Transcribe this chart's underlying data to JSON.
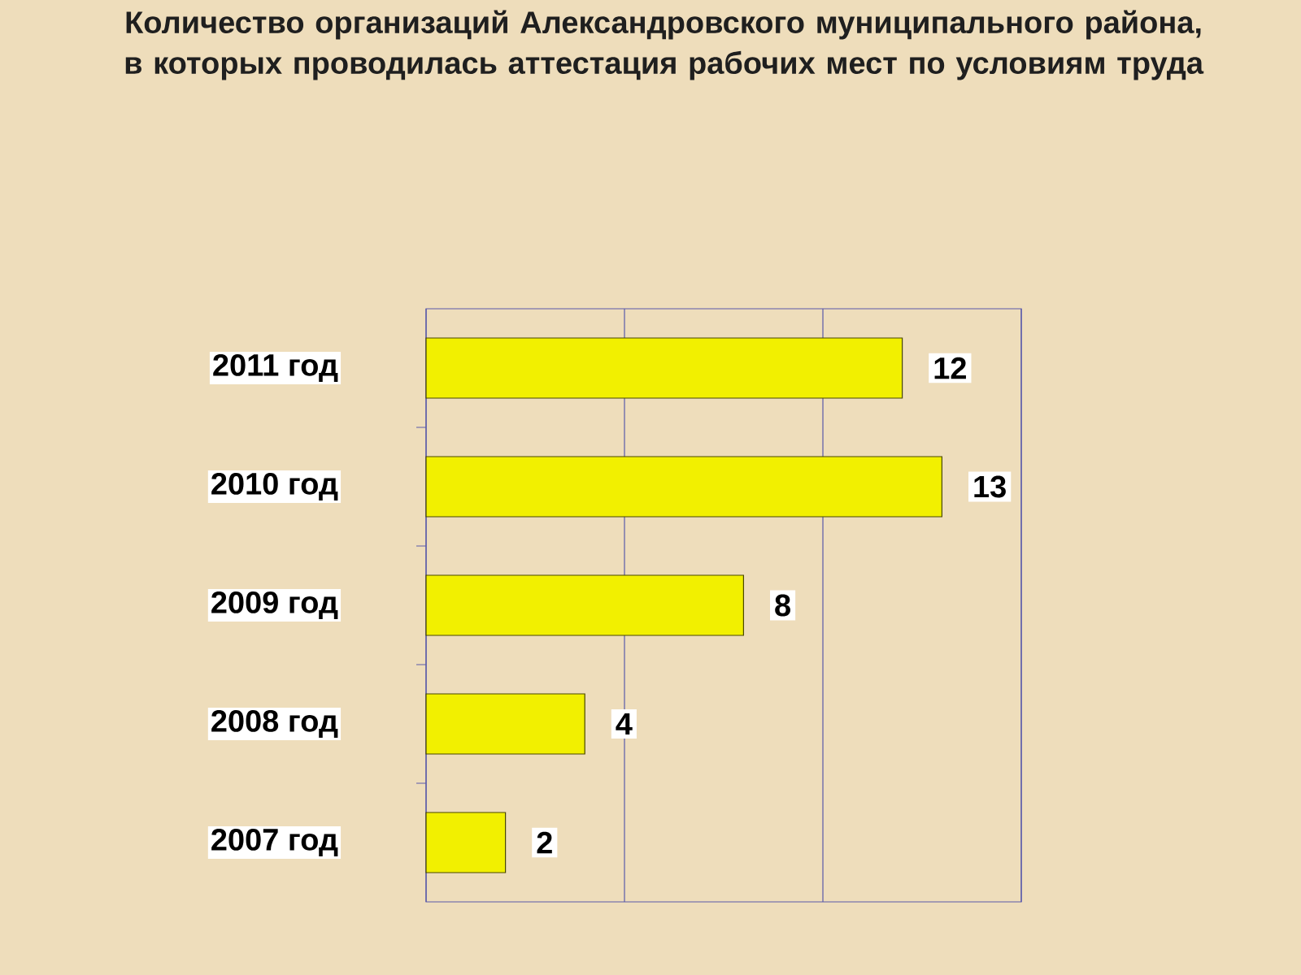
{
  "chart_data": {
    "type": "bar",
    "orientation": "horizontal",
    "title": "Количество организаций Александровского муниципального района, в которых проводилась аттестация рабочих мест по условиям труда",
    "categories": [
      "2011 год",
      "2010 год",
      "2009 год",
      "2008 год",
      "2007 год"
    ],
    "values": [
      12,
      13,
      8,
      4,
      2
    ],
    "color": "#f2f000",
    "data_labels": true,
    "xlim": [
      0,
      15
    ],
    "xticks": [
      {
        "value": 0,
        "label": null
      },
      {
        "value": 5,
        "label": null
      },
      {
        "value": 10,
        "label": null
      },
      {
        "value": 15,
        "label": null
      }
    ],
    "grid": "x",
    "tick_labels": "y"
  }
}
